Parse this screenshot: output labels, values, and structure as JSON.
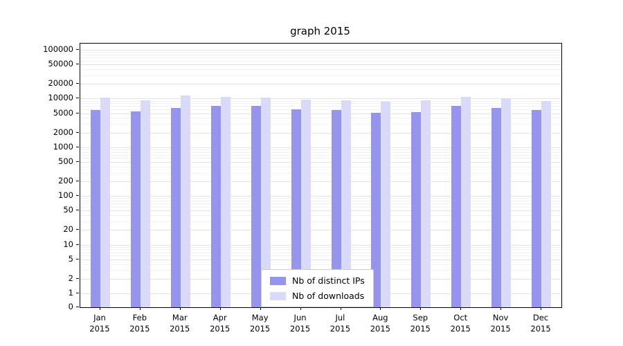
{
  "chart_data": {
    "type": "bar",
    "title": "graph 2015",
    "xlabel": "",
    "ylabel": "",
    "yscale": "log",
    "grid": true,
    "legend_position": "lower center",
    "ylim": [
      0,
      100000
    ],
    "yticks": [
      0,
      1,
      2,
      5,
      10,
      20,
      50,
      100,
      200,
      500,
      1000,
      2000,
      5000,
      10000,
      20000,
      50000,
      100000
    ],
    "categories": [
      "Jan 2015",
      "Feb 2015",
      "Mar 2015",
      "Apr 2015",
      "May 2015",
      "Jun 2015",
      "Jul 2015",
      "Aug 2015",
      "Sep 2015",
      "Oct 2015",
      "Nov 2015",
      "Dec 2015"
    ],
    "series": [
      {
        "name": "Nb of distinct IPs",
        "color": "#9595ee",
        "values": [
          5800,
          5500,
          6500,
          7000,
          7000,
          6100,
          5800,
          5100,
          5300,
          7000,
          6500,
          5900
        ]
      },
      {
        "name": "Nb of downloads",
        "color": "#d9d9f8",
        "values": [
          10500,
          9200,
          11500,
          10800,
          10500,
          9500,
          9200,
          8600,
          9300,
          11000,
          10300,
          8900
        ]
      }
    ]
  }
}
